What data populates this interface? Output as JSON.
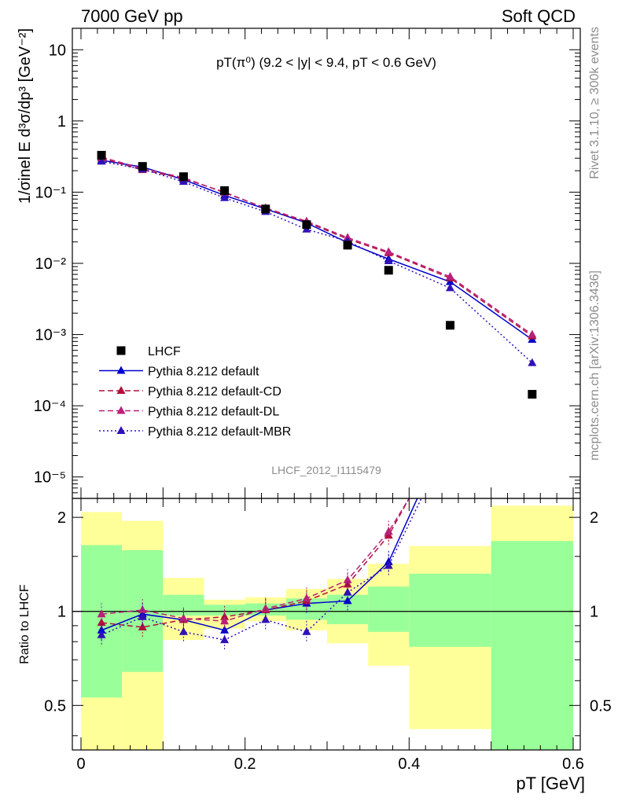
{
  "header": {
    "left": "7000 GeV pp",
    "right": "Soft QCD"
  },
  "side": {
    "top": "Rivet 3.1.10, ≥ 300k events",
    "bottom": "mcplots.cern.ch [arXiv:1306.3436]"
  },
  "chart_data": [
    {
      "type": "line",
      "panel": "main",
      "title": "pT(π⁰) (9.2 < |y| < 9.4, pT < 0.6 GeV)",
      "ylabel": "1/σinel E d³σ/dp³ [GeV⁻²]",
      "xlim": [
        0,
        0.6
      ],
      "ylim": [
        5e-06,
        20
      ],
      "log_y": true,
      "y_tick_labels": [
        "10⁻⁵",
        "10⁻⁴",
        "10⁻³",
        "10⁻²",
        "10⁻¹",
        "1",
        "10"
      ],
      "watermark": "LHCF_2012_I1115479",
      "legend_position": "lower-left",
      "data": {
        "name": "LHCF",
        "color": "#000000",
        "x": [
          0.025,
          0.075,
          0.125,
          0.175,
          0.225,
          0.275,
          0.325,
          0.375,
          0.45,
          0.55
        ],
        "y": [
          0.33,
          0.23,
          0.165,
          0.105,
          0.058,
          0.035,
          0.018,
          0.008,
          0.00135,
          0.000145
        ]
      },
      "series": [
        {
          "name": "Pythia 8.212 default",
          "color": "#0000cc",
          "dash": "solid",
          "x": [
            0.025,
            0.075,
            0.125,
            0.175,
            0.225,
            0.275,
            0.325,
            0.375,
            0.45,
            0.55
          ],
          "y": [
            0.28,
            0.225,
            0.15,
            0.09,
            0.058,
            0.037,
            0.0195,
            0.0115,
            0.0055,
            0.00085
          ]
        },
        {
          "name": "Pythia 8.212 default-CD",
          "color": "#b0103c",
          "dash": "dashed",
          "x": [
            0.025,
            0.075,
            0.125,
            0.175,
            0.225,
            0.275,
            0.325,
            0.375,
            0.45,
            0.55
          ],
          "y": [
            0.3,
            0.205,
            0.155,
            0.1,
            0.059,
            0.038,
            0.022,
            0.014,
            0.0062,
            0.00095
          ]
        },
        {
          "name": "Pythia 8.212 default-DL",
          "color": "#b8207a",
          "dash": "dashed",
          "x": [
            0.025,
            0.075,
            0.125,
            0.175,
            0.225,
            0.275,
            0.325,
            0.375,
            0.45,
            0.55
          ],
          "y": [
            0.31,
            0.215,
            0.16,
            0.098,
            0.06,
            0.039,
            0.023,
            0.0145,
            0.0065,
            0.001
          ]
        },
        {
          "name": "Pythia 8.212 default-MBR",
          "color": "#3010b8",
          "dash": "dotted",
          "x": [
            0.025,
            0.075,
            0.125,
            0.175,
            0.225,
            0.275,
            0.325,
            0.375,
            0.45,
            0.55
          ],
          "y": [
            0.27,
            0.21,
            0.14,
            0.083,
            0.053,
            0.03,
            0.0205,
            0.0108,
            0.0045,
            0.0004
          ]
        }
      ]
    },
    {
      "type": "line",
      "panel": "ratio",
      "ylabel": "Ratio to LHCF",
      "xlabel": "pT [GeV]",
      "xlim": [
        0,
        0.6
      ],
      "ylim": [
        0.36,
        2.3
      ],
      "log_y": true,
      "x_tick_labels": [
        "0",
        "0.2",
        "0.4",
        "0.6"
      ],
      "y_tick_labels": [
        "0.5",
        "1",
        "2"
      ],
      "bands": {
        "bins": [
          [
            0.0,
            0.05
          ],
          [
            0.05,
            0.1
          ],
          [
            0.1,
            0.15
          ],
          [
            0.15,
            0.2
          ],
          [
            0.2,
            0.25
          ],
          [
            0.25,
            0.3
          ],
          [
            0.3,
            0.35
          ],
          [
            0.35,
            0.4
          ],
          [
            0.4,
            0.5
          ],
          [
            0.5,
            0.6
          ]
        ],
        "stat": [
          [
            0.53,
            1.63
          ],
          [
            0.64,
            1.57
          ],
          [
            0.97,
            1.13
          ],
          [
            0.97,
            1.05
          ],
          [
            0.97,
            1.06
          ],
          [
            0.94,
            1.1
          ],
          [
            0.91,
            1.13
          ],
          [
            0.86,
            1.2
          ],
          [
            0.77,
            1.32
          ],
          [
            0.36,
            1.68
          ]
        ],
        "total": [
          [
            0.36,
            2.08
          ],
          [
            0.36,
            1.95
          ],
          [
            0.81,
            1.28
          ],
          [
            0.88,
            1.09
          ],
          [
            0.93,
            1.11
          ],
          [
            0.87,
            1.18
          ],
          [
            0.79,
            1.27
          ],
          [
            0.67,
            1.42
          ],
          [
            0.42,
            1.62
          ],
          [
            0.36,
            2.18
          ]
        ],
        "stat_color": "#99ff99",
        "total_color": "#ffff99"
      },
      "series": [
        {
          "name": "Pythia 8.212 default",
          "color": "#0000cc",
          "dash": "solid",
          "x": [
            0.025,
            0.075,
            0.125,
            0.175,
            0.225,
            0.275,
            0.325,
            0.375,
            0.41
          ],
          "y": [
            0.87,
            0.98,
            0.94,
            0.87,
            1.01,
            1.06,
            1.08,
            1.44,
            2.3
          ]
        },
        {
          "name": "Pythia 8.212 default-CD",
          "color": "#b0103c",
          "dash": "dashed",
          "x": [
            0.025,
            0.075,
            0.125,
            0.175,
            0.225,
            0.275,
            0.325,
            0.375,
            0.4
          ],
          "y": [
            0.92,
            0.89,
            0.94,
            0.96,
            1.01,
            1.08,
            1.22,
            1.75,
            2.3
          ]
        },
        {
          "name": "Pythia 8.212 default-DL",
          "color": "#b8207a",
          "dash": "dashed",
          "x": [
            0.025,
            0.075,
            0.125,
            0.175,
            0.225,
            0.275,
            0.325,
            0.375,
            0.4
          ],
          "y": [
            0.98,
            1.01,
            0.95,
            0.93,
            1.02,
            1.1,
            1.26,
            1.8,
            2.3
          ]
        },
        {
          "name": "Pythia 8.212 default-MBR",
          "color": "#3010b8",
          "dash": "dotted",
          "x": [
            0.025,
            0.075,
            0.125,
            0.175,
            0.225,
            0.275,
            0.325,
            0.375,
            0.415
          ],
          "y": [
            0.84,
            0.96,
            0.86,
            0.81,
            0.94,
            0.86,
            1.15,
            1.4,
            2.3
          ]
        }
      ]
    }
  ]
}
